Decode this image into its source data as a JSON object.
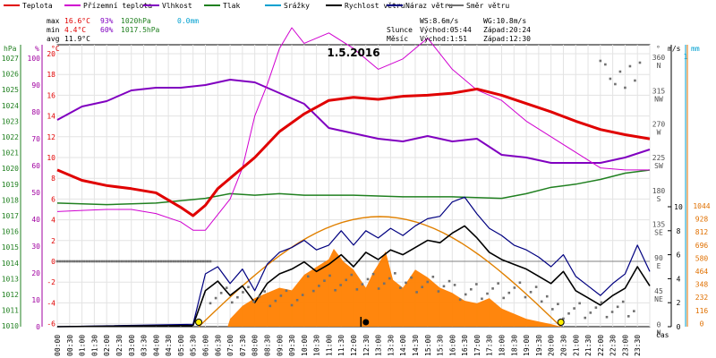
{
  "chart_data": {
    "type": "line",
    "title": "1.5.2016",
    "legend": [
      {
        "name": "Teplota",
        "color": "#e00000"
      },
      {
        "name": "Přízemní teplota",
        "color": "#d000d0"
      },
      {
        "name": "Vlhkost",
        "color": "#8000c0"
      },
      {
        "name": "Tlak",
        "color": "#208020"
      },
      {
        "name": "Srážky",
        "color": "#00a0d0"
      },
      {
        "name": "Rychlost větru",
        "color": "#000000"
      },
      {
        "name": "Náraz větru",
        "color": "#000080"
      },
      {
        "name": "Směr větru",
        "color": "#707070"
      }
    ],
    "stats": {
      "max": {
        "label": "max",
        "temp": "16.6°C",
        "hum": "93%",
        "press": "1020hPa",
        "rain": "0.0mm"
      },
      "min": {
        "label": "min",
        "temp": "4.4°C",
        "hum": "60%",
        "press": "1017.5hPa"
      },
      "avg": {
        "label": "avg",
        "temp": "11.9°C"
      }
    },
    "wind_stats": {
      "ws": "WS:8.6m/s",
      "wg": "WG:10.8m/s"
    },
    "sun": {
      "label": "Slunce",
      "rise": "Východ:05:44",
      "set": "Západ:20:24"
    },
    "moon": {
      "label": "Měsíc",
      "rise": "Východ:1:51",
      "set": "Západ:12:30"
    },
    "axes": {
      "hpa": {
        "label": "hPa",
        "ticks": [
          "1027",
          "1026",
          "1025",
          "1024",
          "1023",
          "1022",
          "1021",
          "1020",
          "1019",
          "1018",
          "1017",
          "1016",
          "1015",
          "1014",
          "1013",
          "1012",
          "1011",
          "1010"
        ]
      },
      "pct": {
        "label": "%",
        "ticks": [
          "100",
          "90",
          "80",
          "70",
          "60",
          "50",
          "40",
          "30",
          "20",
          "10",
          "0"
        ]
      },
      "degc": {
        "label": "°C",
        "ticks": [
          "20",
          "18",
          "16",
          "14",
          "12",
          "10",
          "8",
          "6",
          "4",
          "2",
          "0",
          "-2",
          "-4",
          "-6"
        ]
      },
      "dir": {
        "label": "°",
        "ticks": [
          {
            "v": "360",
            "d": "N"
          },
          {
            "v": "315",
            "d": "NW"
          },
          {
            "v": "270",
            "d": "W"
          },
          {
            "v": "225",
            "d": "SW"
          },
          {
            "v": "180",
            "d": "S"
          },
          {
            "v": "135",
            "d": "SE"
          },
          {
            "v": "90",
            "d": "E"
          },
          {
            "v": "45",
            "d": "NE"
          },
          {
            "v": "0",
            "d": "N"
          }
        ]
      },
      "ms": {
        "label": "m/s",
        "ticks": [
          "10",
          "8",
          "6",
          "4",
          "2",
          "0"
        ]
      },
      "mm": {
        "label": "mm",
        "top": "1",
        "ticks": [
          "1044",
          "928",
          "812",
          "696",
          "580",
          "464",
          "348",
          "232",
          "116",
          "0"
        ]
      },
      "time": {
        "label": "čas",
        "ticks": [
          "00:00",
          "00:30",
          "01:00",
          "01:30",
          "02:00",
          "02:30",
          "03:00",
          "03:30",
          "04:00",
          "04:30",
          "05:00",
          "05:30",
          "06:00",
          "06:30",
          "07:00",
          "07:30",
          "08:00",
          "08:30",
          "09:00",
          "09:30",
          "10:00",
          "10:30",
          "11:00",
          "11:30",
          "12:00",
          "12:30",
          "13:00",
          "13:30",
          "14:00",
          "14:30",
          "15:00",
          "15:30",
          "16:00",
          "16:30",
          "17:00",
          "17:30",
          "18:00",
          "18:30",
          "19:00",
          "19:30",
          "20:00",
          "20:30",
          "21:00",
          "21:30",
          "22:00",
          "22:30",
          "23:00",
          "23:30"
        ]
      }
    },
    "series": {
      "temperature": {
        "t": [
          0,
          1,
          2,
          3,
          4,
          5,
          5.5,
          6,
          6.5,
          7,
          8,
          9,
          10,
          11,
          12,
          13,
          14,
          15,
          16,
          17,
          18,
          19,
          20,
          21,
          22,
          23,
          24
        ],
        "v": [
          8.8,
          7.8,
          7.3,
          7.0,
          6.6,
          5.2,
          4.4,
          5.4,
          7.0,
          8.0,
          10.0,
          12.5,
          14.2,
          15.5,
          15.8,
          15.6,
          15.9,
          16.0,
          16.2,
          16.6,
          16.0,
          15.2,
          14.4,
          13.5,
          12.7,
          12.2,
          11.8
        ]
      },
      "ground_temperature": {
        "t": [
          0,
          1,
          2,
          3,
          4,
          5,
          5.5,
          6,
          7,
          7.5,
          8,
          8.5,
          9,
          9.5,
          10,
          11,
          12,
          13,
          14,
          15,
          16,
          17,
          18,
          19,
          20,
          21,
          22,
          23,
          24
        ],
        "v": [
          4.8,
          4.9,
          5.0,
          5.0,
          4.6,
          3.8,
          3.0,
          3.0,
          6.0,
          9.0,
          14.0,
          17.0,
          20.5,
          22.5,
          21.0,
          22.0,
          20.5,
          18.5,
          19.5,
          21.5,
          18.5,
          16.5,
          15.5,
          13.5,
          12.0,
          10.5,
          9.0,
          8.8,
          8.8
        ]
      },
      "humidity": {
        "t": [
          0,
          1,
          2,
          3,
          4,
          5,
          6,
          7,
          8,
          9,
          10,
          11,
          12,
          13,
          14,
          15,
          16,
          17,
          18,
          19,
          20,
          21,
          22,
          23,
          24
        ],
        "v": [
          77,
          82,
          84,
          88,
          89,
          89,
          90,
          92,
          91,
          87,
          83,
          74,
          72,
          70,
          69,
          71,
          69,
          70,
          64,
          63,
          61,
          61,
          61,
          63,
          66
        ]
      },
      "pressure": {
        "t": [
          0,
          2,
          4,
          6,
          7,
          8,
          9,
          10,
          12,
          14,
          16,
          18,
          19,
          20,
          21,
          22,
          23,
          24
        ],
        "v": [
          1017.8,
          1017.7,
          1017.8,
          1018.1,
          1018.4,
          1018.3,
          1018.4,
          1018.3,
          1018.3,
          1018.2,
          1018.2,
          1018.1,
          1018.4,
          1018.8,
          1019.0,
          1019.3,
          1019.7,
          1019.9
        ]
      },
      "wind_speed": {
        "t": [
          0,
          5.5,
          6,
          6.5,
          7,
          7.5,
          8,
          8.5,
          9,
          9.5,
          10,
          10.5,
          11,
          11.5,
          12,
          12.5,
          13,
          13.5,
          14,
          14.5,
          15,
          15.5,
          16,
          16.5,
          17,
          17.5,
          18,
          18.5,
          19,
          19.5,
          20,
          20.5,
          21,
          21.5,
          22,
          22.5,
          23,
          23.5,
          24
        ],
        "v": [
          0,
          0.1,
          3.0,
          3.8,
          2.6,
          3.4,
          2.0,
          3.6,
          4.4,
          4.8,
          5.4,
          4.6,
          5.2,
          6.0,
          5.0,
          6.2,
          5.6,
          6.4,
          6.0,
          6.6,
          7.2,
          7.0,
          7.8,
          8.4,
          7.4,
          6.2,
          5.6,
          5.2,
          4.8,
          4.2,
          3.6,
          4.6,
          3.0,
          2.4,
          1.8,
          2.6,
          3.2,
          5.0,
          3.4
        ]
      },
      "wind_gust": {
        "t": [
          0,
          5.5,
          6,
          6.5,
          7,
          7.5,
          8,
          8.5,
          9,
          9.5,
          10,
          10.5,
          11,
          11.5,
          12,
          12.5,
          13,
          13.5,
          14,
          14.5,
          15,
          15.5,
          16,
          16.5,
          17,
          17.5,
          18,
          18.5,
          19,
          19.5,
          20,
          20.5,
          21,
          21.5,
          22,
          22.5,
          23,
          23.5,
          24
        ],
        "v": [
          0,
          0.2,
          4.4,
          5.0,
          3.6,
          4.8,
          3.0,
          5.2,
          6.2,
          6.6,
          7.2,
          6.4,
          6.8,
          8.0,
          6.8,
          8.0,
          7.4,
          8.2,
          7.6,
          8.4,
          9.0,
          9.2,
          10.4,
          10.8,
          9.4,
          8.2,
          7.6,
          6.8,
          6.4,
          5.8,
          5.0,
          6.0,
          4.2,
          3.4,
          2.6,
          3.6,
          4.4,
          6.8,
          4.6
        ]
      },
      "rain": {
        "total": "0.0mm"
      }
    }
  }
}
